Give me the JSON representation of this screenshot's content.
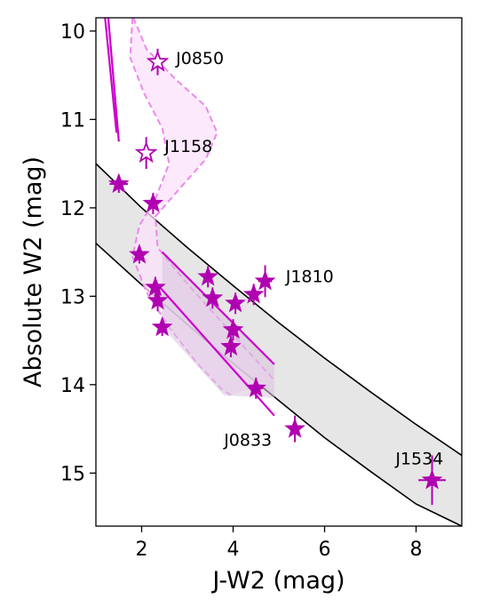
{
  "chart_data": {
    "type": "scatter",
    "title": "",
    "xlabel": "J-W2 (mag)",
    "ylabel": "Absolute W2 (mag)",
    "xlim": [
      1.0,
      9.0
    ],
    "ylim": [
      15.6,
      9.85
    ],
    "y_inverted": true,
    "xticks": [
      "2",
      "4",
      "6",
      "8"
    ],
    "yticks": [
      "10",
      "11",
      "12",
      "13",
      "14",
      "15"
    ],
    "grid": false,
    "colors": {
      "marker": "#b000b0",
      "model": "#cc00cc",
      "band_fill": "#e6e6e6",
      "band_edge": "#000000",
      "dashed": "#ee88ee",
      "dashed_fill": "#fbe3fb",
      "box_fill": "#d8c2dd"
    },
    "band_upper": [
      [
        1.0,
        11.5
      ],
      [
        2.0,
        12.0
      ],
      [
        3.0,
        12.45
      ],
      [
        4.0,
        12.88
      ],
      [
        5.0,
        13.3
      ],
      [
        6.0,
        13.7
      ],
      [
        7.0,
        14.08
      ],
      [
        8.0,
        14.45
      ],
      [
        9.0,
        14.8
      ]
    ],
    "band_lower": [
      [
        1.0,
        12.4
      ],
      [
        2.0,
        12.87
      ],
      [
        3.0,
        13.32
      ],
      [
        4.0,
        13.76
      ],
      [
        5.0,
        14.18
      ],
      [
        6.0,
        14.6
      ],
      [
        7.0,
        14.98
      ],
      [
        8.0,
        15.35
      ],
      [
        9.0,
        15.6
      ]
    ],
    "model_lines": [
      [
        [
          1.2,
          9.85
        ],
        [
          1.45,
          11.15
        ]
      ],
      [
        [
          1.27,
          9.85
        ],
        [
          1.5,
          11.25
        ]
      ],
      [
        [
          2.45,
          12.5
        ],
        [
          4.9,
          13.77
        ]
      ],
      [
        [
          2.4,
          12.9
        ],
        [
          4.9,
          14.35
        ]
      ]
    ],
    "dashed_left": [
      [
        1.8,
        9.85
      ],
      [
        1.75,
        10.3
      ],
      [
        2.05,
        10.7
      ],
      [
        2.45,
        11.1
      ],
      [
        2.6,
        11.5
      ],
      [
        2.3,
        11.9
      ],
      [
        1.95,
        12.2
      ],
      [
        1.8,
        12.55
      ],
      [
        2.1,
        12.95
      ],
      [
        2.6,
        13.35
      ],
      [
        3.2,
        13.75
      ],
      [
        3.75,
        14.05
      ],
      [
        3.95,
        14.12
      ]
    ],
    "dashed_right": [
      [
        1.82,
        9.85
      ],
      [
        2.1,
        10.2
      ],
      [
        2.75,
        10.55
      ],
      [
        3.4,
        10.85
      ],
      [
        3.65,
        11.15
      ],
      [
        3.4,
        11.45
      ],
      [
        2.8,
        11.8
      ],
      [
        2.3,
        12.1
      ],
      [
        2.35,
        12.45
      ],
      [
        2.9,
        12.8
      ],
      [
        3.5,
        13.15
      ],
      [
        4.2,
        13.55
      ],
      [
        4.9,
        13.95
      ]
    ],
    "box_polygon": [
      [
        2.45,
        12.5
      ],
      [
        2.45,
        13.35
      ],
      [
        3.8,
        14.12
      ],
      [
        4.9,
        14.15
      ],
      [
        4.9,
        13.77
      ]
    ],
    "points_filled": [
      {
        "x": 1.5,
        "y": 11.73,
        "xerr": 0.2,
        "yerr": 0.1
      },
      {
        "x": 2.25,
        "y": 11.95,
        "xerr": 0.12,
        "yerr": 0.12
      },
      {
        "x": 1.95,
        "y": 12.53,
        "xerr": 0.12,
        "yerr": 0.1
      },
      {
        "x": 2.3,
        "y": 12.9,
        "xerr": 0.1,
        "yerr": 0.12
      },
      {
        "x": 2.35,
        "y": 13.05,
        "xerr": 0.1,
        "yerr": 0.12
      },
      {
        "x": 2.45,
        "y": 13.35,
        "xerr": 0.1,
        "yerr": 0.1
      },
      {
        "x": 3.45,
        "y": 12.78,
        "xerr": 0.1,
        "yerr": 0.12
      },
      {
        "x": 3.55,
        "y": 13.02,
        "xerr": 0.1,
        "yerr": 0.12
      },
      {
        "x": 4.05,
        "y": 13.08,
        "xerr": 0.1,
        "yerr": 0.12
      },
      {
        "x": 4.45,
        "y": 12.98,
        "xerr": 0.12,
        "yerr": 0.12
      },
      {
        "x": 4.7,
        "y": 12.83,
        "xerr": 0.15,
        "yerr": 0.18
      },
      {
        "x": 4.0,
        "y": 13.38,
        "xerr": 0.1,
        "yerr": 0.12
      },
      {
        "x": 3.95,
        "y": 13.57,
        "xerr": 0.1,
        "yerr": 0.12
      },
      {
        "x": 4.5,
        "y": 14.04,
        "xerr": 0.15,
        "yerr": 0.12
      },
      {
        "x": 5.35,
        "y": 14.5,
        "xerr": 0.12,
        "yerr": 0.15
      },
      {
        "x": 8.35,
        "y": 15.08,
        "xerr": 0.3,
        "yerr": 0.28
      }
    ],
    "points_open": [
      {
        "x": 2.35,
        "y": 10.35,
        "xerr": 0.1,
        "yerr": 0.15
      },
      {
        "x": 2.1,
        "y": 11.38,
        "xerr": 0.1,
        "yerr": 0.18
      }
    ],
    "annotations": [
      {
        "text": "J0850",
        "x": 2.75,
        "y": 10.3
      },
      {
        "text": "J1158",
        "x": 2.5,
        "y": 11.3
      },
      {
        "text": "J1810",
        "x": 5.15,
        "y": 12.77
      },
      {
        "text": "J0833",
        "x": 3.8,
        "y": 14.62
      },
      {
        "text": "J1534",
        "x": 7.55,
        "y": 14.83
      }
    ]
  }
}
